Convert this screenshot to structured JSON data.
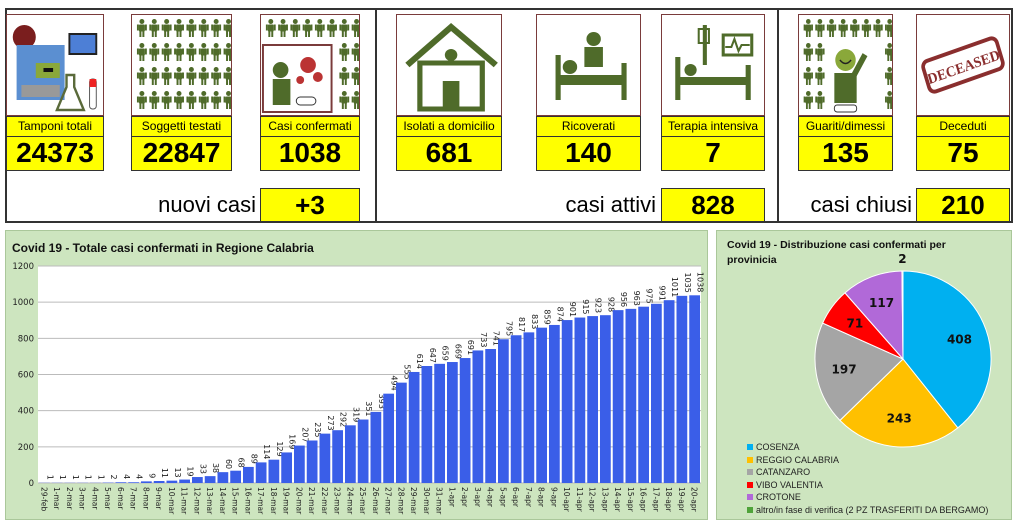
{
  "cards": [
    {
      "label": "Tamponi totali",
      "value": "24373",
      "icon": "lab-equipment-icon"
    },
    {
      "label": "Soggetti testati",
      "value": "22847",
      "icon": "people-grid-icon"
    },
    {
      "label": "Casi confermati",
      "value": "1038",
      "icon": "infected-person-icon"
    },
    {
      "label": "Isolati a domicilio",
      "value": "681",
      "icon": "house-icon"
    },
    {
      "label": "Ricoverati",
      "value": "140",
      "icon": "hospital-bed-icon"
    },
    {
      "label": "Terapia intensiva",
      "value": "7",
      "icon": "intensive-care-icon"
    },
    {
      "label": "Guariti/dimessi",
      "value": "135",
      "icon": "recovered-person-icon"
    },
    {
      "label": "Deceduti",
      "value": "75",
      "icon": "deceased-stamp-icon"
    }
  ],
  "summary": [
    {
      "label": "nuovi casi",
      "value": "+3"
    },
    {
      "label": "casi attivi",
      "value": "828"
    },
    {
      "label": "casi chiusi",
      "value": "210"
    }
  ],
  "deceased_stamp": "DECEASED",
  "chart_data": [
    {
      "type": "bar",
      "title": "Covid 19 - Totale casi confermati in Regione Calabria",
      "ylim": [
        0,
        1200
      ],
      "yticks": [
        0,
        200,
        400,
        600,
        800,
        1000,
        1200
      ],
      "grid": true,
      "color": "#3a5ee8",
      "categories": [
        "29-feb",
        "1-mar",
        "2-mar",
        "3-mar",
        "4-mar",
        "5-mar",
        "6-mar",
        "7-mar",
        "8-mar",
        "9-mar",
        "10-mar",
        "11-mar",
        "12-mar",
        "13-mar",
        "14-mar",
        "15-mar",
        "16-mar",
        "17-mar",
        "18-mar",
        "19-mar",
        "20-mar",
        "21-mar",
        "22-mar",
        "23-mar",
        "24-mar",
        "25-mar",
        "26-mar",
        "27-mar",
        "28-mar",
        "29-mar",
        "30-mar",
        "31-mar",
        "1-apr",
        "2-apr",
        "3-apr",
        "4-apr",
        "5-apr",
        "6-apr",
        "7-apr",
        "8-apr",
        "9-apr",
        "10-apr",
        "11-apr",
        "12-apr",
        "13-apr",
        "14-apr",
        "15-apr",
        "16-apr",
        "17-apr",
        "18-apr",
        "19-apr",
        "20-apr"
      ],
      "values": [
        1,
        1,
        1,
        1,
        1,
        2,
        4,
        4,
        9,
        11,
        13,
        19,
        33,
        38,
        60,
        68,
        89,
        114,
        129,
        169,
        207,
        235,
        273,
        292,
        319,
        351,
        393,
        494,
        555,
        614,
        647,
        659,
        669,
        691,
        733,
        741,
        795,
        817,
        833,
        859,
        874,
        901,
        915,
        923,
        928,
        956,
        963,
        975,
        991,
        1011,
        1035,
        1038
      ]
    },
    {
      "type": "pie",
      "title_line1": "Covid 19 - Distribuzione casi confermati per",
      "title_line2": "provinicia",
      "legend": "bottom-left",
      "slices": [
        {
          "name": "COSENZA",
          "value": 408,
          "color": "#00b0f0"
        },
        {
          "name": "REGGIO CALABRIA",
          "value": 243,
          "color": "#ffc000"
        },
        {
          "name": "CATANZARO",
          "value": 197,
          "color": "#a5a5a5"
        },
        {
          "name": "VIBO VALENTIA",
          "value": 71,
          "color": "#ff0000"
        },
        {
          "name": "CROTONE",
          "value": 117,
          "color": "#b169d8"
        },
        {
          "name": "altro/in fase di verifica (2 PZ TRASFERITI  DA BERGAMO)",
          "value": 2,
          "color": "#4fa33a"
        }
      ]
    }
  ]
}
